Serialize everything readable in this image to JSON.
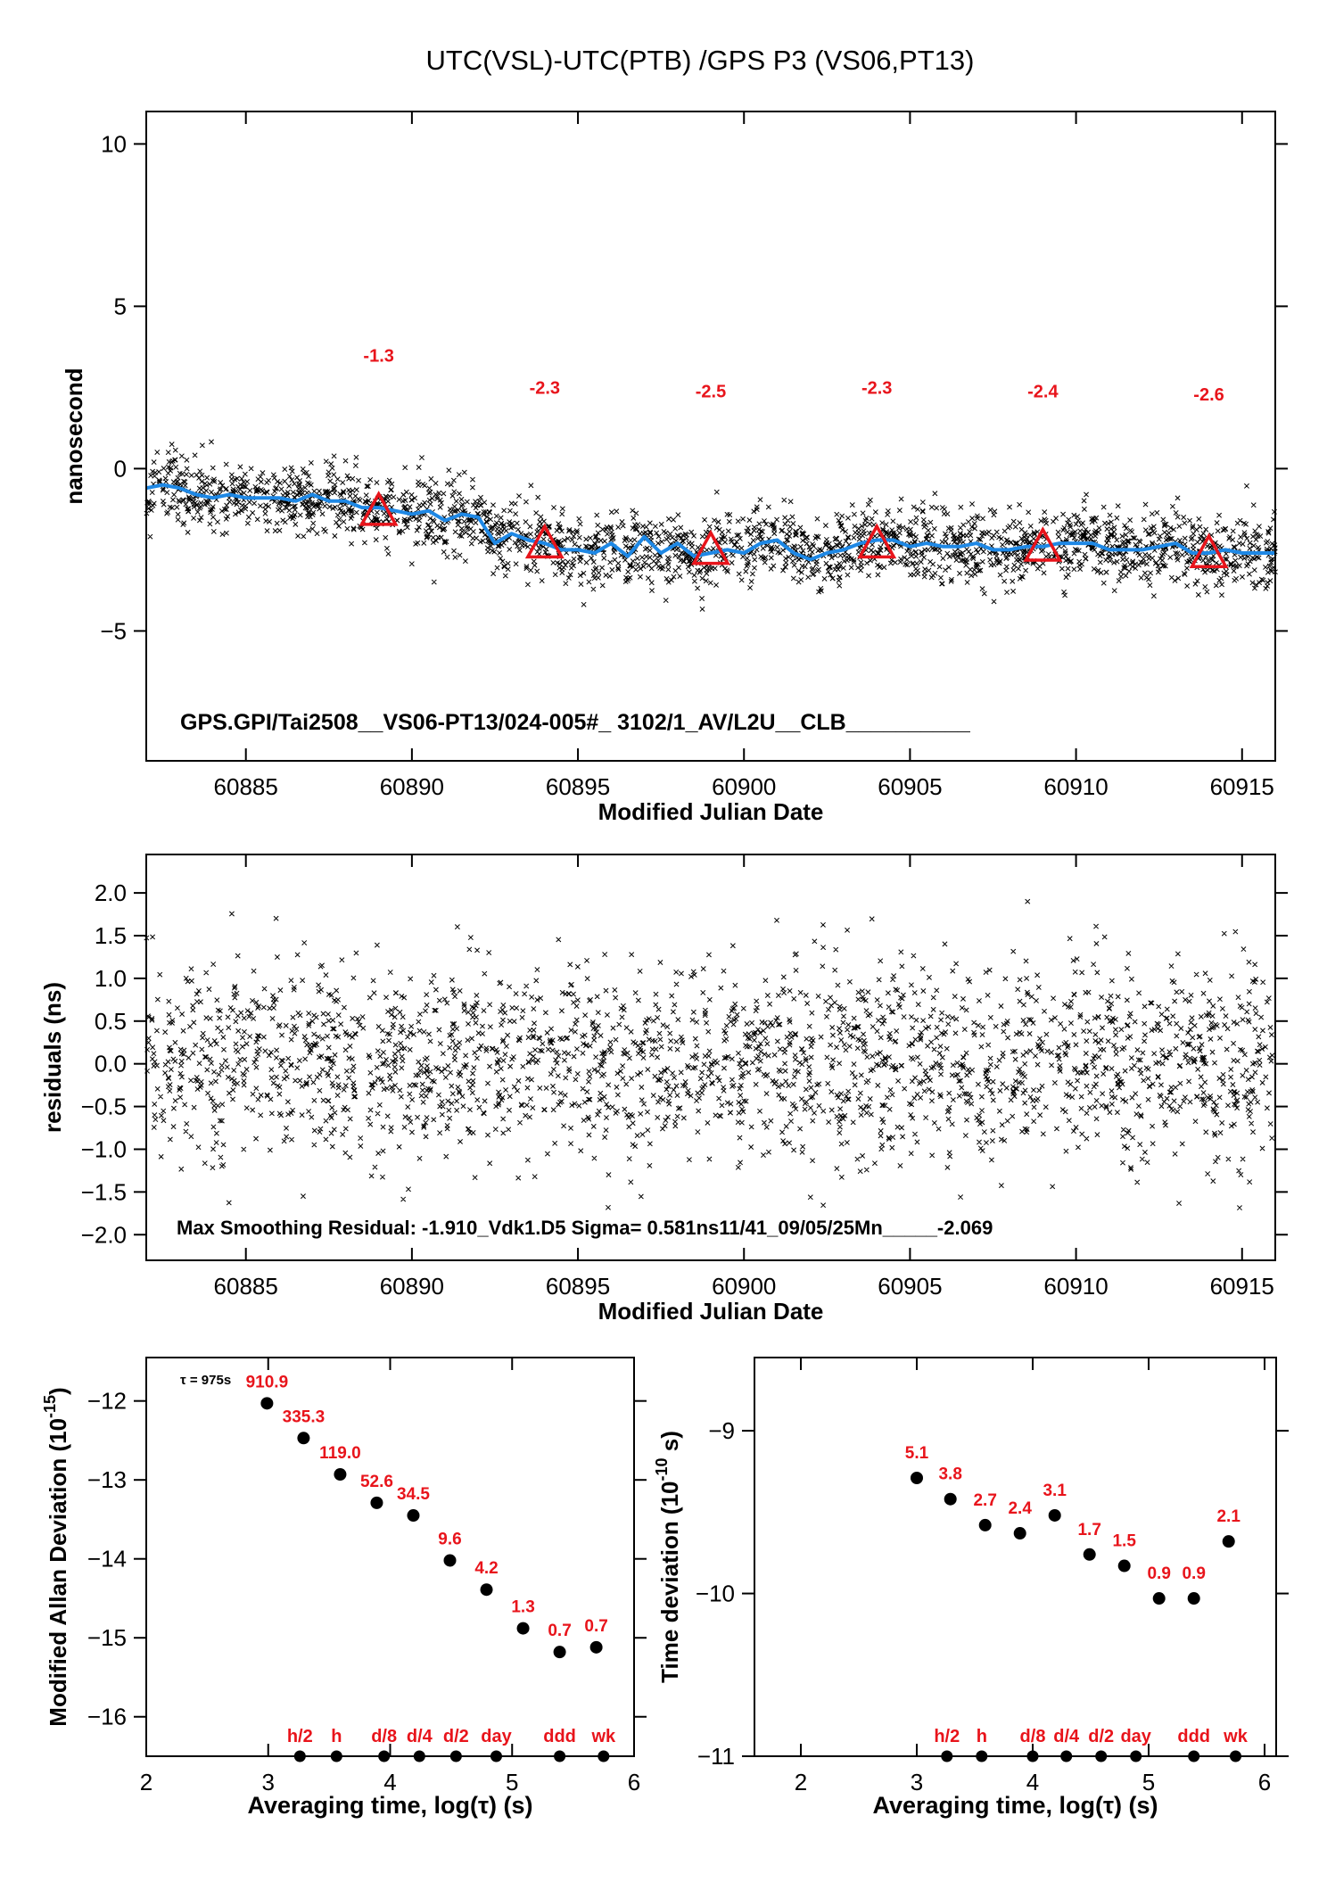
{
  "figure_title": "UTC(VSL)-UTC(PTB)  /GPS  P3  (VS06,PT13)",
  "colors": {
    "scatter": "#000000",
    "smooth": "#1e88e5",
    "marker": "#e8141b",
    "label_red": "#e8141b",
    "frame": "#000000"
  },
  "chart_data": [
    {
      "id": "time-series",
      "type": "scatter",
      "xlabel": "Modified Julian Date",
      "ylabel": "nanosecond",
      "xlim": [
        60882,
        60916
      ],
      "ylim": [
        -9,
        11
      ],
      "xticks": [
        60885,
        60890,
        60895,
        60900,
        60905,
        60910,
        60915
      ],
      "yticks": [
        -5,
        0,
        5,
        10
      ],
      "annotation": "GPS.GPI/Tai2508__VS06-PT13/024-005#_  3102/1_AV/L2U__CLB__________",
      "series": [
        {
          "kind": "scatter-noise",
          "marker": "x",
          "n": 2400,
          "seed": 7,
          "spread": 0.55
        },
        {
          "kind": "smoothed-line",
          "x": [
            60882,
            60882.5,
            60883,
            60883.5,
            60884,
            60884.5,
            60885,
            60885.5,
            60886,
            60886.5,
            60887,
            60887.5,
            60888,
            60888.5,
            60889,
            60889.5,
            60890,
            60890.5,
            60891,
            60891.5,
            60892,
            60892.5,
            60893,
            60893.5,
            60894,
            60894.5,
            60895,
            60895.5,
            60896,
            60896.5,
            60897,
            60897.5,
            60898,
            60898.5,
            60899,
            60899.5,
            60900,
            60900.5,
            60901,
            60901.5,
            60902,
            60902.5,
            60903,
            60903.5,
            60904,
            60904.5,
            60905,
            60905.5,
            60906,
            60906.5,
            60907,
            60907.5,
            60908,
            60908.5,
            60909,
            60909.5,
            60910,
            60910.5,
            60911,
            60911.5,
            60912,
            60912.5,
            60913,
            60913.5,
            60914,
            60914.5,
            60915,
            60915.5,
            60916
          ],
          "y": [
            -0.6,
            -0.5,
            -0.6,
            -0.8,
            -0.9,
            -0.8,
            -0.9,
            -0.9,
            -0.9,
            -1.0,
            -0.8,
            -1.0,
            -1.0,
            -1.2,
            -1.2,
            -1.3,
            -1.4,
            -1.3,
            -1.6,
            -1.4,
            -1.5,
            -2.3,
            -2.0,
            -2.2,
            -2.3,
            -2.5,
            -2.5,
            -2.6,
            -2.3,
            -2.7,
            -2.1,
            -2.6,
            -2.3,
            -2.7,
            -2.6,
            -2.5,
            -2.6,
            -2.3,
            -2.2,
            -2.6,
            -2.8,
            -2.6,
            -2.5,
            -2.3,
            -2.2,
            -2.2,
            -2.4,
            -2.3,
            -2.4,
            -2.4,
            -2.3,
            -2.5,
            -2.5,
            -2.4,
            -2.4,
            -2.3,
            -2.3,
            -2.3,
            -2.5,
            -2.5,
            -2.5,
            -2.4,
            -2.3,
            -2.6,
            -2.6,
            -2.5,
            -2.6,
            -2.6,
            -2.6
          ]
        },
        {
          "kind": "monthly-means",
          "marker": "triangle",
          "x": [
            60889,
            60894,
            60899,
            60904,
            60909,
            60914
          ],
          "y": [
            -1.3,
            -2.3,
            -2.5,
            -2.3,
            -2.4,
            -2.6
          ],
          "labels": [
            "-1.3",
            "-2.3",
            "-2.5",
            "-2.3",
            "-2.4",
            "-2.6"
          ],
          "label_y": [
            3.3,
            2.3,
            2.2,
            2.3,
            2.2,
            2.1
          ]
        }
      ]
    },
    {
      "id": "residuals",
      "type": "scatter",
      "xlabel": "Modified Julian Date",
      "ylabel": "residuals (ns)",
      "xlim": [
        60882,
        60916
      ],
      "ylim": [
        -2.3,
        2.45
      ],
      "xticks": [
        60885,
        60890,
        60895,
        60900,
        60905,
        60910,
        60915
      ],
      "yticks": [
        -2.0,
        -1.5,
        -1.0,
        -0.5,
        0.0,
        0.5,
        1.0,
        1.5,
        2.0
      ],
      "ytick_labels": [
        "−2.0",
        "−1.5",
        "−1.0",
        "−0.5",
        "0.0",
        "0.5",
        "1.0",
        "1.5",
        "2.0"
      ],
      "annotation": "Max Smoothing Residual: -1.910_Vdk1.D5  Sigma= 0.581ns11/41_09/05/25Mn_____-2.069",
      "series": [
        {
          "kind": "scatter-noise",
          "marker": "x",
          "n": 2300,
          "seed": 13,
          "sigma": 0.58
        }
      ]
    },
    {
      "id": "mdev",
      "type": "scatter",
      "xlabel": "Averaging time, log(τ) (s)",
      "ylabel_main": "Modified Allan Deviation (10",
      "ylabel_sup": "-15",
      "ylabel_end": ")",
      "xlim": [
        2,
        6
      ],
      "ylim": [
        -16.5,
        -11.45
      ],
      "xticks": [
        2,
        3,
        4,
        5,
        6
      ],
      "yticks": [
        -16,
        -15,
        -14,
        -13,
        -12
      ],
      "tau_label": "τ = 975s",
      "x": [
        2.99,
        3.29,
        3.59,
        3.89,
        4.19,
        4.49,
        4.79,
        5.09,
        5.39,
        5.69
      ],
      "y": [
        -12.03,
        -12.47,
        -12.93,
        -13.29,
        -13.45,
        -14.02,
        -14.39,
        -14.88,
        -15.18,
        -15.12
      ],
      "labels": [
        "910.9",
        "335.3",
        "119.0",
        "52.6",
        "34.5",
        "9.6",
        "4.2",
        "1.3",
        "0.7",
        "0.7"
      ],
      "ticks_x": [
        3.26,
        3.56,
        3.95,
        4.24,
        4.54,
        4.87,
        5.39,
        5.75
      ],
      "ticks_labels": [
        "h/2",
        "h",
        "d/8",
        "d/4",
        "d/2",
        "day",
        "ddd",
        "wk"
      ]
    },
    {
      "id": "tdev",
      "type": "scatter",
      "xlabel": "Averaging time, log(τ) (s)",
      "ylabel_main": "Time deviation (10",
      "ylabel_sup": "-10",
      "ylabel_end": " s)",
      "xlim": [
        1.6,
        6.1
      ],
      "ylim": [
        -11,
        -8.55
      ],
      "xticks": [
        2,
        3,
        4,
        5,
        6
      ],
      "yticks": [
        -11,
        -10,
        -9
      ],
      "x": [
        3.0,
        3.29,
        3.59,
        3.89,
        4.19,
        4.49,
        4.79,
        5.09,
        5.39,
        5.69
      ],
      "y": [
        -9.29,
        -9.42,
        -9.58,
        -9.63,
        -9.52,
        -9.76,
        -9.83,
        -10.03,
        -10.03,
        -9.68
      ],
      "labels": [
        "5.1",
        "3.8",
        "2.7",
        "2.4",
        "3.1",
        "1.7",
        "1.5",
        "0.9",
        "0.9",
        "2.1"
      ],
      "ticks_x": [
        3.26,
        3.56,
        4.0,
        4.29,
        4.59,
        4.89,
        5.39,
        5.75
      ],
      "ticks_labels": [
        "h/2",
        "h",
        "d/8",
        "d/4",
        "d/2",
        "day",
        "ddd",
        "wk"
      ]
    }
  ]
}
